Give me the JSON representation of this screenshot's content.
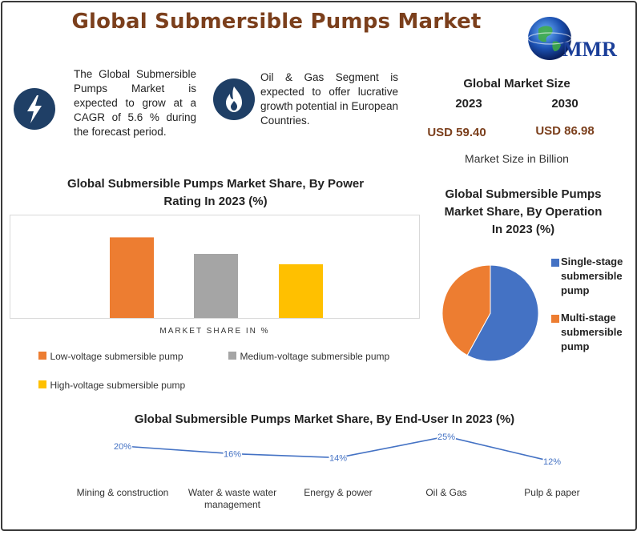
{
  "header": {
    "title": "Global Submersible Pumps Market",
    "logo_text": "MMR"
  },
  "info": {
    "growth_text": "The Global Submersible Pumps Market is expected to grow at a CAGR of 5.6 % during the forecast period.",
    "segment_text": "Oil & Gas Segment is expected to offer lucrative growth potential in European Countries.",
    "icons": [
      "lightning-icon",
      "flame-icon"
    ]
  },
  "market_size": {
    "heading": "Global Market Size",
    "year_a": "2023",
    "year_b": "2030",
    "value_a": "USD 59.40",
    "value_b": "USD 86.98",
    "note": "Market Size in Billion"
  },
  "colors": {
    "accent": "#7b3f1c",
    "icon_bg": "#1f3f66",
    "orange": "#ed7d31",
    "gray": "#a5a5a5",
    "yellow": "#ffc000",
    "blue": "#4472c4"
  },
  "chart_data": [
    {
      "type": "bar",
      "title": "Global Submersible Pumps Market Share, By Power Rating In 2023 (%)",
      "xlabel": "MARKET SHARE IN %",
      "ylabel": "",
      "ylim": [
        0,
        1
      ],
      "series": [
        {
          "name": "Low-voltage submersible pump",
          "values": [
            0.78
          ],
          "color": "#ed7d31"
        },
        {
          "name": "Medium-voltage submersible pump",
          "values": [
            0.62
          ],
          "color": "#a5a5a5"
        },
        {
          "name": "High-voltage submersible pump",
          "values": [
            0.52
          ],
          "color": "#ffc000"
        }
      ],
      "grid": false,
      "legend": "bottom"
    },
    {
      "type": "pie",
      "title": "Global Submersible Pumps Market Share, By Operation In 2023 (%)",
      "categories": [
        "Single-stage submersible pump",
        "Multi-stage submersible pump"
      ],
      "values": [
        58,
        42
      ],
      "colors": [
        "#4472c4",
        "#ed7d31"
      ],
      "legend": "right"
    },
    {
      "type": "line",
      "title": "Global Submersible Pumps Market Share, By End-User In 2023 (%)",
      "categories": [
        "Mining & construction",
        "Water & waste water management",
        "Energy & power",
        "Oil & Gas",
        "Pulp & paper"
      ],
      "values": [
        20,
        16,
        14,
        25,
        12
      ],
      "labels": [
        "20%",
        "16%",
        "14%",
        "25%",
        "12%"
      ],
      "color": "#4472c4",
      "grid": false
    }
  ]
}
